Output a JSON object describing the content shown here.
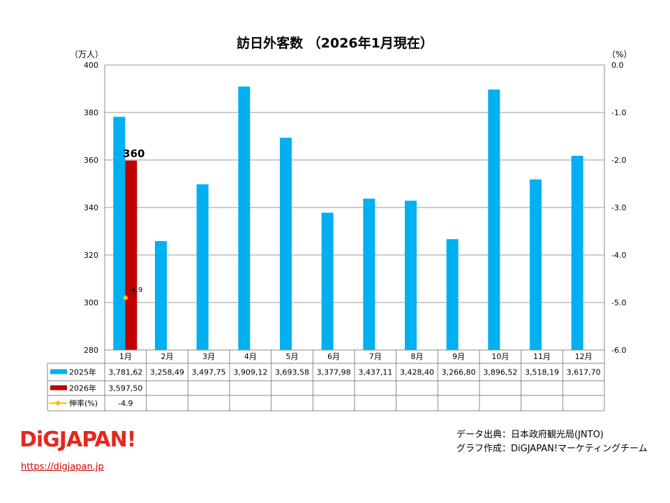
{
  "chart_data": {
    "type": "bar",
    "title": "訪日外客数 （2026年1月現在）",
    "ylabel_left": "（万人）",
    "ylabel_right": "（%）",
    "ylim": [
      280,
      400
    ],
    "y2lim": [
      -6.0,
      0.0
    ],
    "yticks": [
      280,
      300,
      320,
      340,
      360,
      380,
      400
    ],
    "y2ticks": [
      "0.0",
      "-1.0",
      "-2.0",
      "-3.0",
      "-4.0",
      "-5.0",
      "-6.0"
    ],
    "grid": true,
    "categories": [
      "1月",
      "2月",
      "3月",
      "4月",
      "5月",
      "6月",
      "7月",
      "8月",
      "9月",
      "10月",
      "11月",
      "12月"
    ],
    "series": [
      {
        "name": "2025年",
        "color": "#00b0f0",
        "type": "bar",
        "values": [
          378.162,
          325.849,
          349.775,
          390.912,
          369.358,
          337.798,
          343.711,
          342.84,
          326.68,
          389.652,
          351.819,
          361.77
        ],
        "table": [
          "3,781,62",
          "3,258,49",
          "3,497,75",
          "3,909,12",
          "3,693,58",
          "3,377,98",
          "3,437,11",
          "3,428,40",
          "3,266,80",
          "3,896,52",
          "3,518,19",
          "3,617,70"
        ]
      },
      {
        "name": "2026年",
        "color": "#c00000",
        "type": "bar",
        "values": [
          359.75,
          null,
          null,
          null,
          null,
          null,
          null,
          null,
          null,
          null,
          null,
          null
        ],
        "table": [
          "3,597,50",
          "",
          "",
          "",
          "",
          "",
          "",
          "",
          "",
          "",
          "",
          ""
        ]
      },
      {
        "name": "伸率(%)",
        "color": "#ffc000",
        "type": "line",
        "axis": "right",
        "values": [
          -4.9,
          null,
          null,
          null,
          null,
          null,
          null,
          null,
          null,
          null,
          null,
          null
        ],
        "table": [
          "-4.9",
          "",
          "",
          "",
          "",
          "",
          "",
          "",
          "",
          "",
          "",
          ""
        ]
      }
    ],
    "data_labels": {
      "bar_2026_jan": "360",
      "growth_jan": "-4.9"
    }
  },
  "footer": {
    "logo": "DiGJAPAN!",
    "url": "https://digjapan.jp",
    "source": "データ出典：日本政府観光局(JNTO)",
    "made_by": "グラフ作成：DiGJAPAN!マーケティングチーム"
  }
}
